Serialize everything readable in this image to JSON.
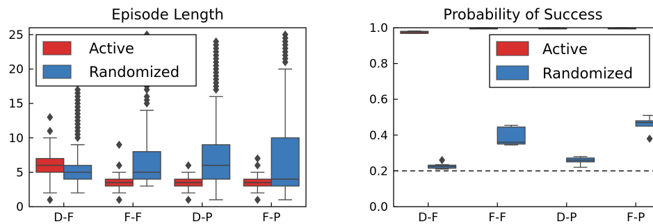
{
  "chart_data": [
    {
      "type": "box",
      "title": "Episode Length",
      "xlabel": "",
      "ylabel": "",
      "ylim": [
        0,
        26
      ],
      "yticks": [
        0,
        5,
        10,
        15,
        20,
        25
      ],
      "categories": [
        "D-F",
        "F-F",
        "D-P",
        "F-P"
      ],
      "legend_position": "top-left",
      "series": [
        {
          "name": "Active",
          "color": "#d7302f",
          "boxes": [
            {
              "whisker_low": 2,
              "q1": 5,
              "median": 6,
              "q3": 7,
              "whisker_high": 10,
              "outliers": [
                1,
                11,
                13
              ]
            },
            {
              "whisker_low": 2,
              "q1": 3,
              "median": 3.5,
              "q3": 4,
              "whisker_high": 5,
              "outliers": [
                1,
                6,
                9
              ]
            },
            {
              "whisker_low": 2,
              "q1": 3,
              "median": 3.5,
              "q3": 4,
              "whisker_high": 5,
              "outliers": [
                1,
                6
              ]
            },
            {
              "whisker_low": 2,
              "q1": 3,
              "median": 3.5,
              "q3": 4,
              "whisker_high": 5,
              "outliers": [
                1,
                6,
                7
              ]
            }
          ]
        },
        {
          "name": "Randomized",
          "color": "#3d7ab9",
          "boxes": [
            {
              "whisker_low": 2,
              "q1": 4,
              "median": 5,
              "q3": 6,
              "whisker_high": 9,
              "outliers": [
                10,
                10.5,
                11,
                11.5,
                12,
                12.5,
                13,
                13.5,
                14,
                14.5,
                15,
                15.5,
                16,
                16.5,
                17
              ]
            },
            {
              "whisker_low": 3,
              "q1": 4,
              "median": 5,
              "q3": 8,
              "whisker_high": 14,
              "outliers": [
                15,
                15.5,
                16,
                17,
                17.5,
                18,
                19,
                20,
                21,
                22,
                23,
                24,
                25
              ]
            },
            {
              "whisker_low": 1,
              "q1": 4,
              "median": 6,
              "q3": 9,
              "whisker_high": 16,
              "outliers": [
                17,
                17.5,
                18,
                18.5,
                19,
                19.5,
                20,
                20.5,
                21,
                21.5,
                22,
                22.5,
                23,
                23.5,
                24
              ]
            },
            {
              "whisker_low": 1,
              "q1": 3,
              "median": 4,
              "q3": 10,
              "whisker_high": 20,
              "outliers": [
                21,
                21.5,
                22,
                22.5,
                23,
                23.5,
                24,
                24.5,
                25
              ]
            }
          ]
        }
      ]
    },
    {
      "type": "box",
      "title": "Probability of Success",
      "xlabel": "",
      "ylabel": "",
      "ylim": [
        0,
        1
      ],
      "yticks": [
        "0.0",
        "0.2",
        "0.4",
        "0.6",
        "0.8",
        "1.0"
      ],
      "categories": [
        "D-F",
        "F-F",
        "D-P",
        "F-P"
      ],
      "reference_line": 0.2,
      "legend_position": "top-right",
      "series": [
        {
          "name": "Active",
          "color": "#d7302f",
          "boxes": [
            {
              "whisker_low": 0.968,
              "q1": 0.968,
              "median": 0.975,
              "q3": 0.98,
              "whisker_high": 0.982,
              "outliers": []
            },
            {
              "whisker_low": 0.995,
              "q1": 0.995,
              "median": 0.997,
              "q3": 0.999,
              "whisker_high": 1.0,
              "outliers": []
            },
            {
              "whisker_low": 0.995,
              "q1": 0.995,
              "median": 0.997,
              "q3": 0.999,
              "whisker_high": 1.0,
              "outliers": []
            },
            {
              "whisker_low": 0.995,
              "q1": 0.995,
              "median": 0.997,
              "q3": 0.999,
              "whisker_high": 1.0,
              "outliers": []
            }
          ]
        },
        {
          "name": "Randomized",
          "color": "#3d7ab9",
          "boxes": [
            {
              "whisker_low": 0.21,
              "q1": 0.215,
              "median": 0.225,
              "q3": 0.232,
              "whisker_high": 0.235,
              "outliers": [
                0.26
              ]
            },
            {
              "whisker_low": 0.345,
              "q1": 0.35,
              "median": 0.36,
              "q3": 0.445,
              "whisker_high": 0.455,
              "outliers": []
            },
            {
              "whisker_low": 0.22,
              "q1": 0.25,
              "median": 0.26,
              "q3": 0.272,
              "whisker_high": 0.28,
              "outliers": []
            },
            {
              "whisker_low": 0.45,
              "q1": 0.45,
              "median": 0.47,
              "q3": 0.48,
              "whisker_high": 0.51,
              "outliers": [
                0.38
              ]
            }
          ]
        }
      ]
    }
  ]
}
